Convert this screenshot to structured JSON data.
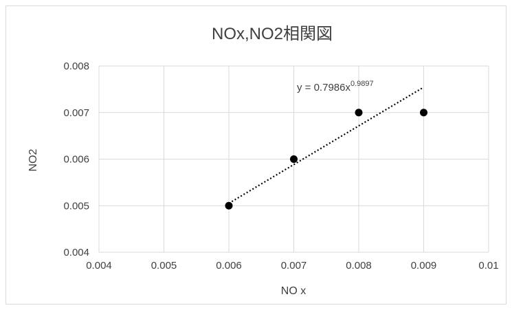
{
  "chart_data": {
    "type": "scatter",
    "title": "NOx,NO2相関図",
    "xlabel": "NO x",
    "ylabel": "NO2",
    "xlim": [
      0.004,
      0.01
    ],
    "ylim": [
      0.004,
      0.008
    ],
    "x_ticks": [
      "0.004",
      "0.005",
      "0.006",
      "0.007",
      "0.008",
      "0.009",
      "0.01"
    ],
    "y_ticks": [
      "0.004",
      "0.005",
      "0.006",
      "0.007",
      "0.008"
    ],
    "grid": true,
    "points": [
      {
        "x": 0.006,
        "y": 0.005
      },
      {
        "x": 0.007,
        "y": 0.006
      },
      {
        "x": 0.008,
        "y": 0.007
      },
      {
        "x": 0.009,
        "y": 0.007
      }
    ],
    "trendline": {
      "type": "power",
      "coefficient": 0.7986,
      "exponent": 0.9897,
      "x_range": [
        0.006,
        0.009
      ],
      "equation_base": "y = 0.7986x",
      "equation_exponent": "0.9897"
    },
    "colors": {
      "points": "#000000",
      "grid": "#d9d9d9",
      "text": "#404040"
    }
  }
}
